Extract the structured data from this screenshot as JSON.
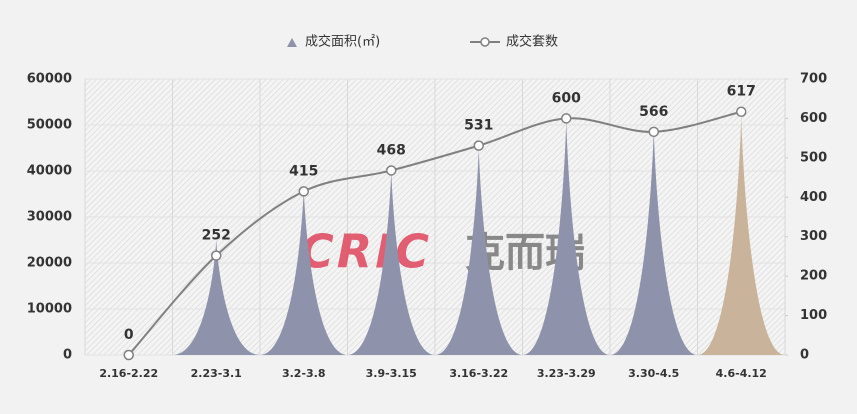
{
  "chart_data": {
    "type": "spike-line",
    "categories": [
      "2.16-2.22",
      "2.23-3.1",
      "3.2-3.8",
      "3.9-3.15",
      "3.16-3.22",
      "3.23-3.29",
      "3.30-4.5",
      "4.6-4.12"
    ],
    "series": [
      {
        "name": "成交面积(㎡)",
        "color": "#8e92ab",
        "colors": [
          "#8e92ab",
          "#8e92ab",
          "#8e92ab",
          "#8e92ab",
          "#8e92ab",
          "#8e92ab",
          "#8e92ab",
          "#c9b49b"
        ],
        "values": [
          0,
          25000,
          36000,
          40000,
          45000,
          51000,
          49000,
          52000
        ]
      },
      {
        "name": "成交套数",
        "color": "#808080",
        "axis": "y2",
        "values": [
          0,
          252,
          415,
          468,
          531,
          600,
          566,
          617
        ]
      }
    ],
    "ylim": [
      0,
      60000
    ],
    "yticks": [
      0,
      10000,
      20000,
      30000,
      40000,
      50000,
      60000
    ],
    "y2lim": [
      0,
      700
    ],
    "y2ticks": [
      0,
      100,
      200,
      300,
      400,
      500,
      600,
      700
    ],
    "watermark": [
      "CRIC",
      "克而瑞"
    ]
  }
}
